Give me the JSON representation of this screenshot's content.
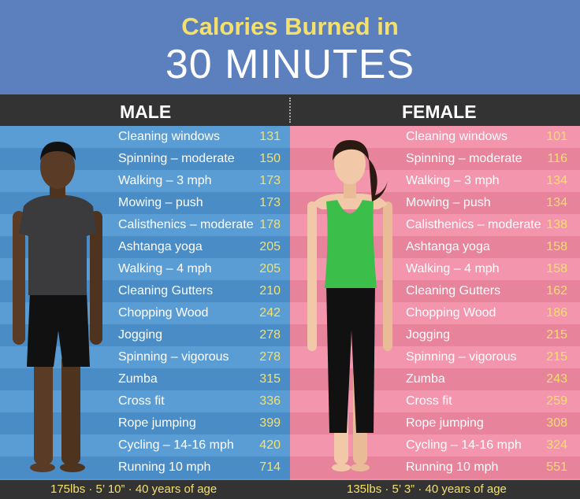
{
  "title": {
    "line1": "Calories Burned in",
    "line2": "30 MINUTES"
  },
  "male": {
    "label": "MALE",
    "footer": "175lbs  ·  5’ 10”  ·  40 years of age",
    "rows": [
      {
        "activity": "Cleaning windows",
        "calories": "131"
      },
      {
        "activity": "Spinning – moderate",
        "calories": "150"
      },
      {
        "activity": "Walking – 3 mph",
        "calories": "173"
      },
      {
        "activity": "Mowing – push",
        "calories": "173"
      },
      {
        "activity": "Calisthenics – moderate",
        "calories": "178"
      },
      {
        "activity": "Ashtanga yoga",
        "calories": "205"
      },
      {
        "activity": "Walking – 4 mph",
        "calories": "205"
      },
      {
        "activity": "Cleaning Gutters",
        "calories": "210"
      },
      {
        "activity": "Chopping Wood",
        "calories": "242"
      },
      {
        "activity": "Jogging",
        "calories": "278"
      },
      {
        "activity": "Spinning – vigorous",
        "calories": "278"
      },
      {
        "activity": "Zumba",
        "calories": "315"
      },
      {
        "activity": "Cross fit",
        "calories": "336"
      },
      {
        "activity": "Rope jumping",
        "calories": "399"
      },
      {
        "activity": "Cycling – 14-16 mph",
        "calories": "420"
      },
      {
        "activity": "Running 10 mph",
        "calories": "714"
      }
    ]
  },
  "female": {
    "label": "FEMALE",
    "footer": "135lbs  ·  5’ 3”  ·  40 years of age",
    "rows": [
      {
        "activity": "Cleaning windows",
        "calories": "101"
      },
      {
        "activity": "Spinning – moderate",
        "calories": "116"
      },
      {
        "activity": "Walking – 3 mph",
        "calories": "134"
      },
      {
        "activity": "Mowing – push",
        "calories": "134"
      },
      {
        "activity": "Calisthenics – moderate",
        "calories": "138"
      },
      {
        "activity": "Ashtanga yoga",
        "calories": "158"
      },
      {
        "activity": "Walking – 4 mph",
        "calories": "158"
      },
      {
        "activity": "Cleaning Gutters",
        "calories": "162"
      },
      {
        "activity": "Chopping Wood",
        "calories": "186"
      },
      {
        "activity": "Jogging",
        "calories": "215"
      },
      {
        "activity": "Spinning – vigorous",
        "calories": "215"
      },
      {
        "activity": "Zumba",
        "calories": "243"
      },
      {
        "activity": "Cross fit",
        "calories": "259"
      },
      {
        "activity": "Rope jumping",
        "calories": "308"
      },
      {
        "activity": "Cycling – 14-16 mph",
        "calories": "324"
      },
      {
        "activity": "Running 10 mph",
        "calories": "551"
      }
    ]
  },
  "colors": {
    "header_bg": "#5b80bd",
    "title_accent": "#f5e06b",
    "male_panel": "#4f95cf",
    "female_panel": "#ef8ca4",
    "bar_dark": "#333333"
  }
}
